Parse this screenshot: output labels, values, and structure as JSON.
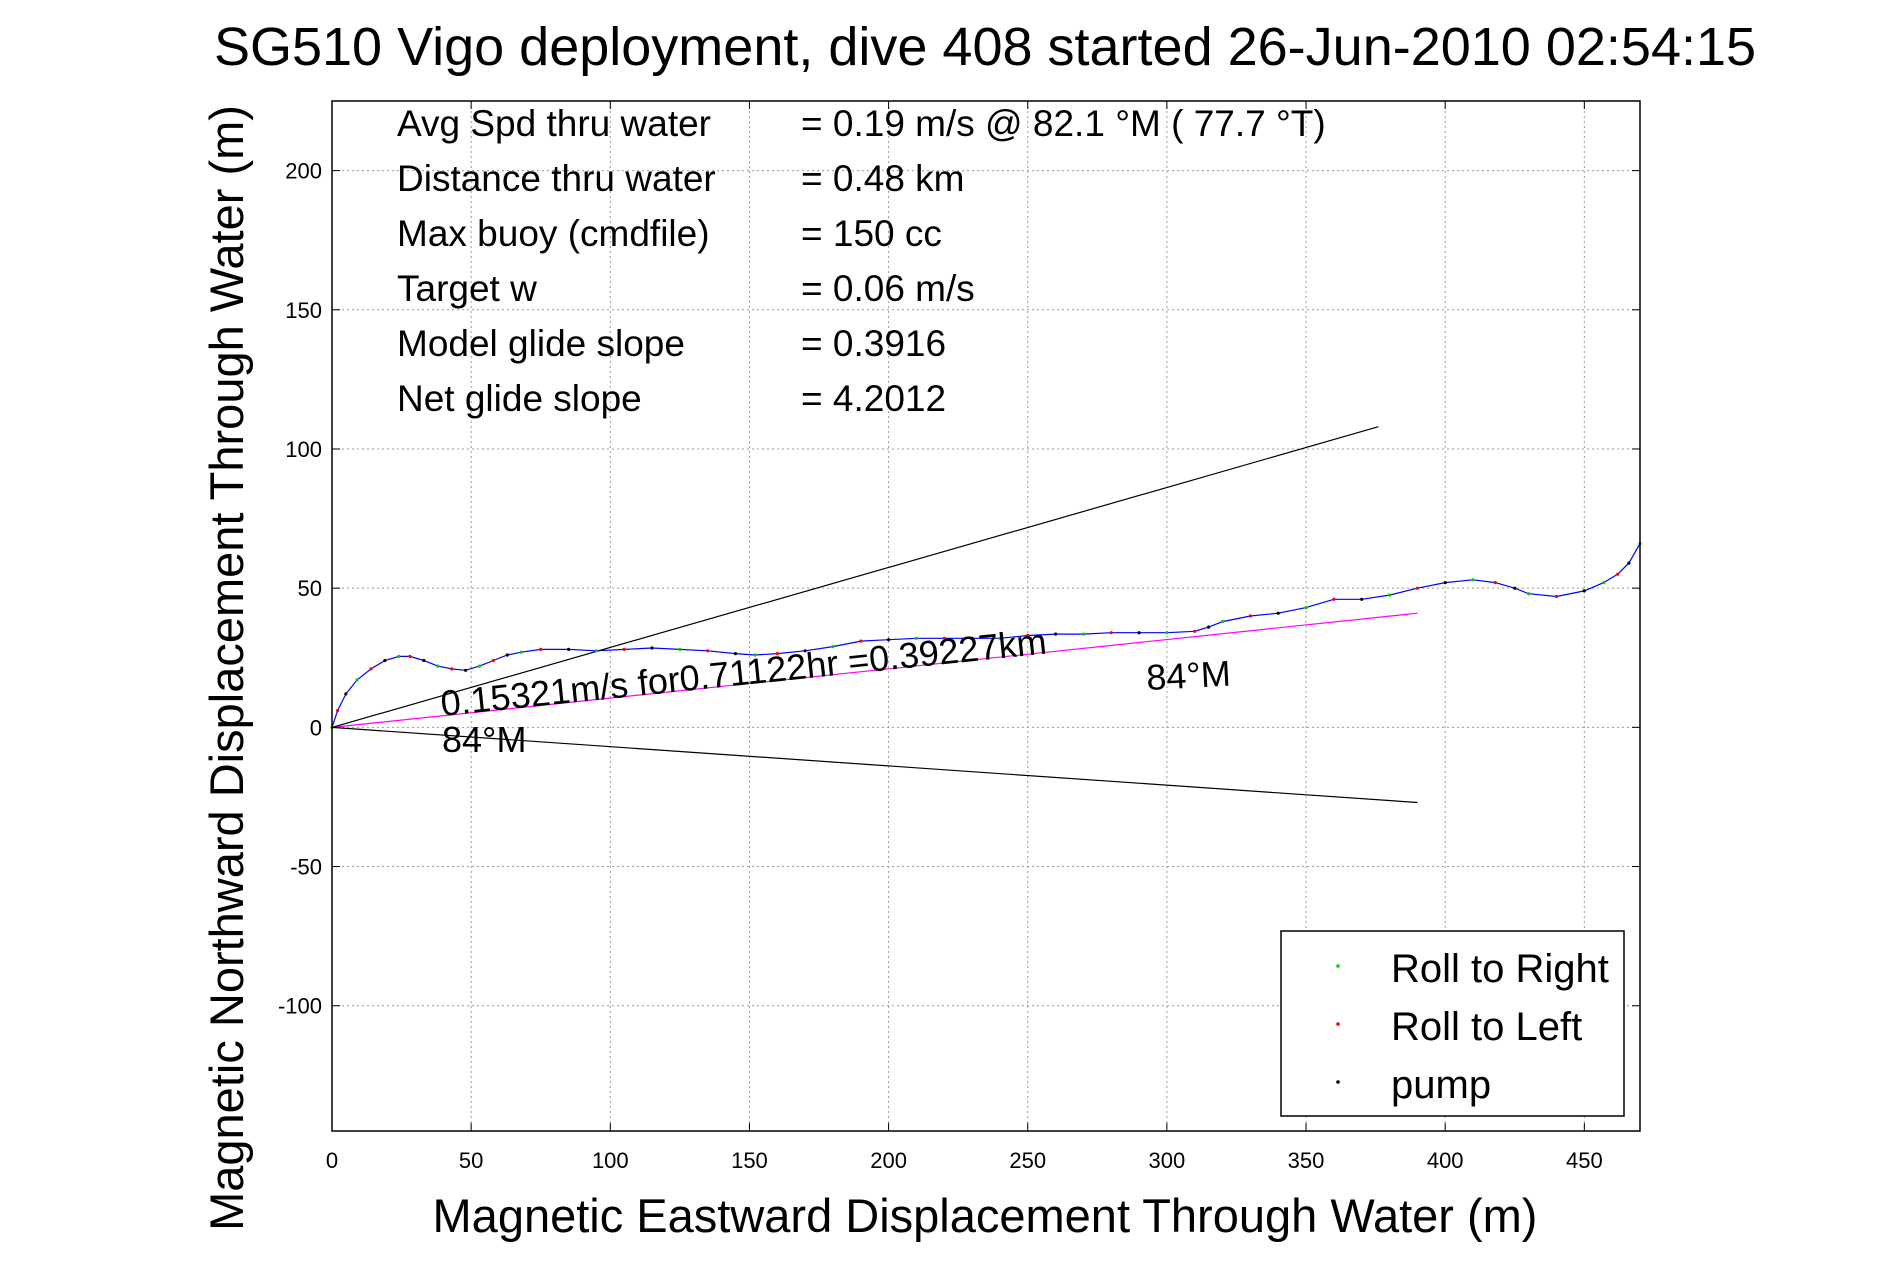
{
  "chart_data": {
    "type": "line",
    "title": "SG510 Vigo deployment, dive 408 started 26-Jun-2010 02:54:15",
    "xlabel": "Magnetic Eastward Displacement Through Water (m)",
    "ylabel": "Magnetic Northward Displacement Through Water (m)",
    "xlim": [
      0,
      470
    ],
    "ylim": [
      -145,
      225
    ],
    "xticks": [
      0,
      50,
      100,
      150,
      200,
      250,
      300,
      350,
      400,
      450
    ],
    "yticks": [
      -100,
      -50,
      0,
      50,
      100,
      150,
      200
    ],
    "grid": true,
    "legend_position": "bottom-right",
    "stats": [
      {
        "label": "Avg Spd thru water",
        "value": "=  0.19 m/s @  82.1 °M ( 77.7 °T)"
      },
      {
        "label": "Distance thru water",
        "value": "=  0.48 km"
      },
      {
        "label": "Max buoy (cmdfile)",
        "value": "= 150 cc"
      },
      {
        "label": "Target w",
        "value": "= 0.06 m/s"
      },
      {
        "label": "Model glide slope",
        "value": "= 0.3916"
      },
      {
        "label": "Net glide slope",
        "value": "= 4.2012"
      }
    ],
    "annotations": {
      "drift": "0.15321m/s for0.71122hr =0.39227km",
      "heading_start": "84°M",
      "heading_end": "84°M"
    },
    "legend": [
      {
        "label": "Roll to Right",
        "color": "#00cc00"
      },
      {
        "label": "Roll to Left",
        "color": "#ff0000"
      },
      {
        "label": "pump",
        "color": "#000000"
      }
    ],
    "series": [
      {
        "color": "#0000ff",
        "x": [
          0,
          2,
          5,
          9,
          14,
          19,
          24,
          28,
          33,
          38,
          43,
          48,
          53,
          58,
          63,
          68,
          75,
          85,
          95,
          105,
          115,
          125,
          135,
          145,
          152,
          160,
          170,
          180,
          190,
          200,
          210,
          220,
          230,
          240,
          250,
          260,
          270,
          280,
          290,
          300,
          310,
          315,
          320,
          330,
          340,
          350,
          360,
          370,
          380,
          390,
          400,
          410,
          418,
          425,
          430,
          440,
          450,
          457,
          462,
          466,
          470
        ],
        "y": [
          0,
          6,
          12,
          17,
          21,
          24,
          25.5,
          25.5,
          24,
          22,
          21,
          20.5,
          22,
          24,
          26,
          27,
          28,
          28,
          27.5,
          28,
          28.5,
          28,
          27.5,
          26.5,
          26,
          26.5,
          27.5,
          29,
          31,
          31.5,
          32,
          32,
          32,
          32,
          33,
          33.5,
          33.5,
          34,
          34,
          34,
          34.5,
          36,
          38,
          40,
          41,
          43,
          46,
          46,
          47.5,
          50,
          52,
          53,
          52,
          50,
          48,
          47,
          49,
          52,
          55,
          59,
          66
        ]
      },
      {
        "color": "#ff00ff",
        "x": [
          0,
          390
        ],
        "y": [
          0,
          41
        ]
      },
      {
        "color": "#000000",
        "x": [
          0,
          376
        ],
        "y": [
          0,
          108
        ]
      },
      {
        "color": "#000000",
        "x": [
          0,
          390
        ],
        "y": [
          0,
          -27
        ]
      }
    ]
  }
}
